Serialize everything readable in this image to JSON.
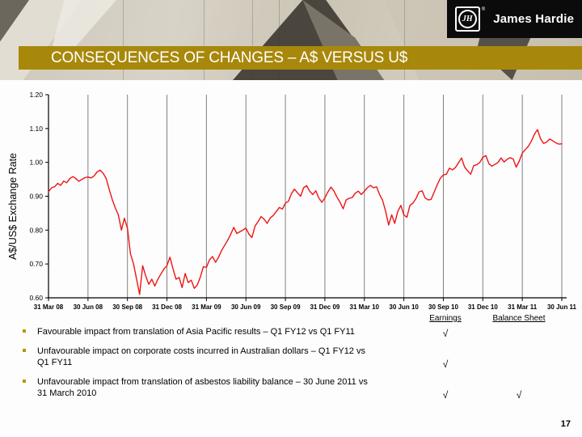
{
  "header": {
    "logo_monogram": "JH",
    "registered_mark": "®",
    "logo_text": "James Hardie",
    "title": "CONSEQUENCES OF CHANGES – A$ VERSUS U$"
  },
  "colors": {
    "banner_gold": "#a8880b",
    "bullet_gold": "#b8960c",
    "line_red": "#ee1414",
    "gridline_gray": "#808080",
    "logo_bg": "#0b0b0b"
  },
  "chart_data": {
    "type": "line",
    "title": "",
    "xlabel": "",
    "ylabel": "A$/US$ Exchange Rate",
    "ylim": [
      0.6,
      1.2
    ],
    "yticks": [
      0.6,
      0.7,
      0.8,
      0.9,
      1.0,
      1.1,
      1.2
    ],
    "x_tick_labels": [
      "31 Mar 08",
      "30 Jun 08",
      "30 Sep 08",
      "31 Dec 08",
      "31 Mar 09",
      "30 Jun 09",
      "30 Sep 09",
      "31 Dec 09",
      "31 Mar 10",
      "30 Jun 10",
      "30 Sep 10",
      "31 Dec 10",
      "31 Mar 11",
      "30 Jun 11"
    ],
    "grid": "vertical-quarterly",
    "legend": "none",
    "line_color": "#ee1414",
    "series": [
      {
        "name": "A$/US$ exchange rate (weekly)",
        "values": [
          0.913,
          0.925,
          0.928,
          0.938,
          0.932,
          0.945,
          0.94,
          0.952,
          0.958,
          0.952,
          0.944,
          0.95,
          0.955,
          0.957,
          0.954,
          0.96,
          0.972,
          0.977,
          0.968,
          0.952,
          0.92,
          0.89,
          0.865,
          0.845,
          0.8,
          0.835,
          0.805,
          0.73,
          0.7,
          0.655,
          0.61,
          0.695,
          0.665,
          0.64,
          0.655,
          0.635,
          0.655,
          0.67,
          0.685,
          0.695,
          0.72,
          0.685,
          0.655,
          0.66,
          0.63,
          0.672,
          0.645,
          0.652,
          0.628,
          0.638,
          0.662,
          0.692,
          0.69,
          0.712,
          0.722,
          0.705,
          0.72,
          0.74,
          0.755,
          0.77,
          0.788,
          0.808,
          0.79,
          0.795,
          0.8,
          0.806,
          0.788,
          0.778,
          0.812,
          0.825,
          0.84,
          0.832,
          0.82,
          0.836,
          0.843,
          0.855,
          0.867,
          0.862,
          0.88,
          0.885,
          0.908,
          0.921,
          0.91,
          0.9,
          0.925,
          0.931,
          0.915,
          0.905,
          0.916,
          0.895,
          0.882,
          0.895,
          0.913,
          0.927,
          0.915,
          0.897,
          0.882,
          0.863,
          0.889,
          0.894,
          0.896,
          0.909,
          0.915,
          0.905,
          0.915,
          0.925,
          0.932,
          0.925,
          0.928,
          0.905,
          0.888,
          0.855,
          0.815,
          0.845,
          0.82,
          0.855,
          0.873,
          0.845,
          0.838,
          0.873,
          0.88,
          0.893,
          0.913,
          0.916,
          0.895,
          0.889,
          0.891,
          0.913,
          0.934,
          0.953,
          0.963,
          0.965,
          0.983,
          0.978,
          0.985,
          0.999,
          1.013,
          0.986,
          0.975,
          0.965,
          0.99,
          0.993,
          1.0,
          1.015,
          1.02,
          0.996,
          0.989,
          0.994,
          1.0,
          1.013,
          1.001,
          1.009,
          1.014,
          1.01,
          0.986,
          1.004,
          1.028,
          1.038,
          1.048,
          1.063,
          1.083,
          1.097,
          1.07,
          1.056,
          1.06,
          1.069,
          1.064,
          1.058,
          1.054,
          1.055
        ]
      }
    ]
  },
  "impacts": {
    "columns": [
      {
        "label": "Earnings"
      },
      {
        "label": "Balance Sheet"
      }
    ],
    "check_glyph": "√",
    "items": [
      {
        "lines": [
          "Favourable impact from translation of Asia Pacific results – Q1 FY12 vs Q1 FY11"
        ],
        "earnings": true,
        "balance_sheet": false
      },
      {
        "lines": [
          "Unfavourable impact on corporate costs incurred in Australian dollars – Q1 FY12 vs",
          "Q1 FY11"
        ],
        "earnings": true,
        "balance_sheet": false
      },
      {
        "lines": [
          "Unfavourable impact from translation of asbestos liability balance – 30 June 2011 vs",
          "31 March 2010"
        ],
        "earnings": true,
        "balance_sheet": true
      }
    ]
  },
  "footer": {
    "page_number": "17"
  }
}
